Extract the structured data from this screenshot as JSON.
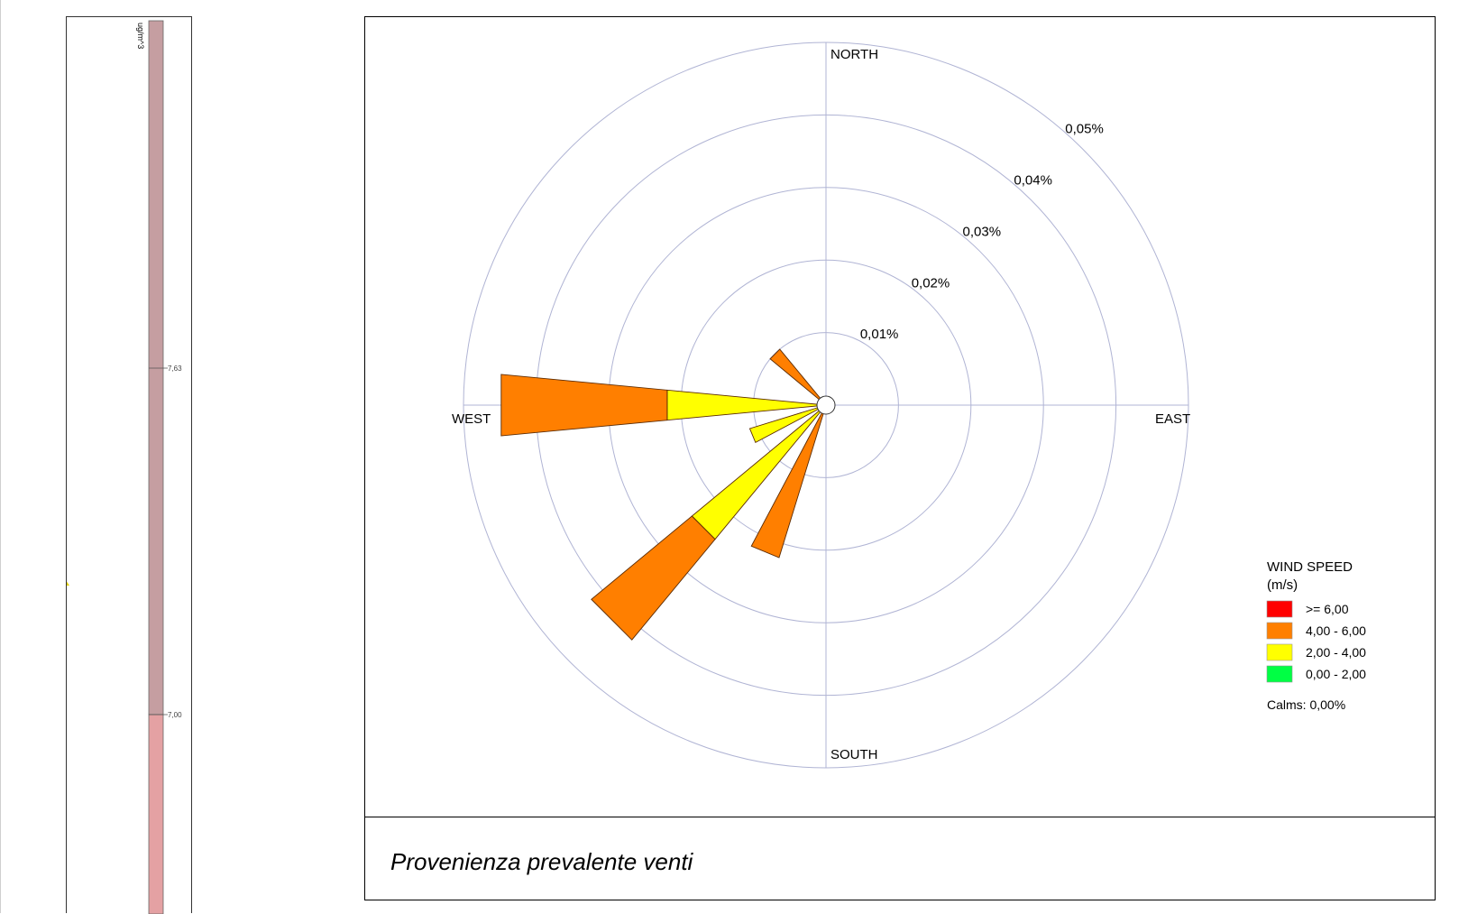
{
  "scale_bar": {
    "unit": "ug/m^3",
    "ticks": [
      "7,63",
      "7,00"
    ],
    "colors": {
      "upper": "#c59ea1",
      "lower": "#e4a1a3"
    }
  },
  "chart_data": {
    "type": "windrose",
    "title": "",
    "directions": {
      "north": "NORTH",
      "east": "EAST",
      "south": "SOUTH",
      "west": "WEST"
    },
    "rings": {
      "values": [
        0.01,
        0.02,
        0.03,
        0.04,
        0.05
      ],
      "labels": [
        "0,01%",
        "0,02%",
        "0,03%",
        "0,04%",
        "0,05%"
      ],
      "max": 0.05
    },
    "sectors_deg_from_north": [
      202.5,
      225,
      247.5,
      270,
      292.5,
      315
    ],
    "series": [
      {
        "name": "0,00 - 2,00",
        "color": "#00ff44",
        "values": [
          0,
          0,
          0,
          0,
          0,
          0
        ]
      },
      {
        "name": "2,00 - 4,00",
        "color": "#ffff00",
        "values": [
          0,
          0.024,
          0.011,
          0.022,
          0,
          0
        ]
      },
      {
        "name": "4,00 - 6,00",
        "color": "#ff7f00",
        "values": [
          0.022,
          0.018,
          0,
          0.023,
          0,
          0.01
        ]
      },
      {
        "name": ">= 6,00",
        "color": "#ff0000",
        "values": [
          0,
          0,
          0,
          0,
          0,
          0
        ]
      }
    ],
    "legend": {
      "title_line1": "WIND SPEED",
      "title_line2": "(m/s)",
      "order": [
        ">= 6,00",
        "4,00 - 6,00",
        "2,00 - 4,00",
        "0,00 - 2,00"
      ],
      "calms": "Calms: 0,00%",
      "position": "bottom-right"
    },
    "grid": true,
    "grid_color": "#b0b4d4"
  },
  "caption": "Provenienza prevalente venti"
}
